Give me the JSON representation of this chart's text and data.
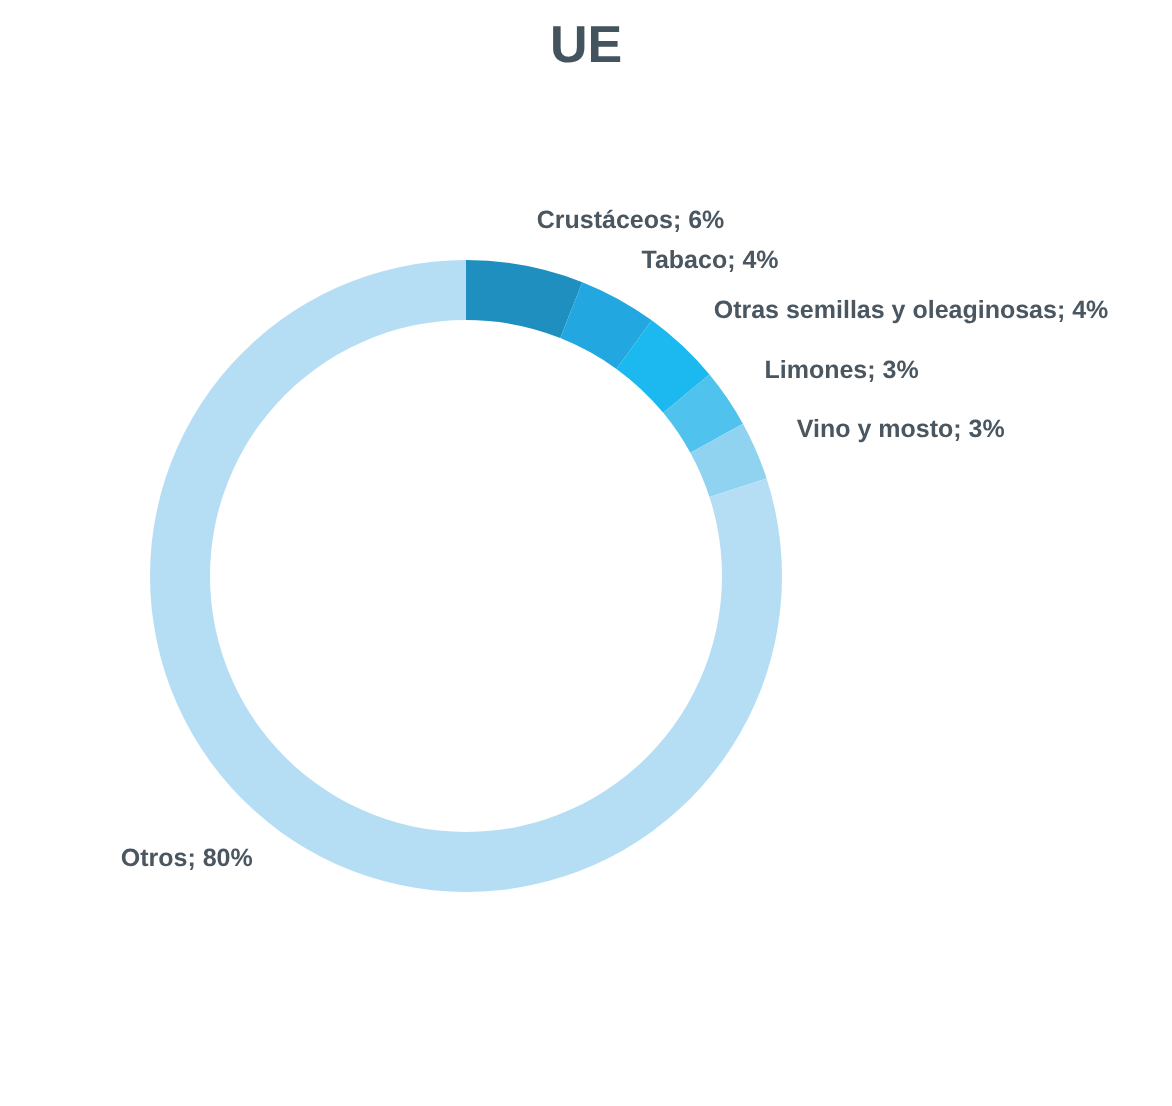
{
  "chart_data": {
    "type": "donut",
    "title": "UE",
    "categories": [
      "Crustáceos",
      "Tabaco",
      "Otras semillas y oleaginosas",
      "Limones",
      "Vino y mosto",
      "Otros"
    ],
    "values": [
      6,
      4,
      4,
      3,
      3,
      80
    ],
    "value_labels": [
      "6%",
      "4%",
      "4%",
      "3%",
      "3%",
      "80%"
    ],
    "colors": [
      "#1f8fc0",
      "#22a7e0",
      "#1cb9f0",
      "#4fc3ee",
      "#8fd3f0",
      "#b5def5"
    ],
    "legend": false
  }
}
